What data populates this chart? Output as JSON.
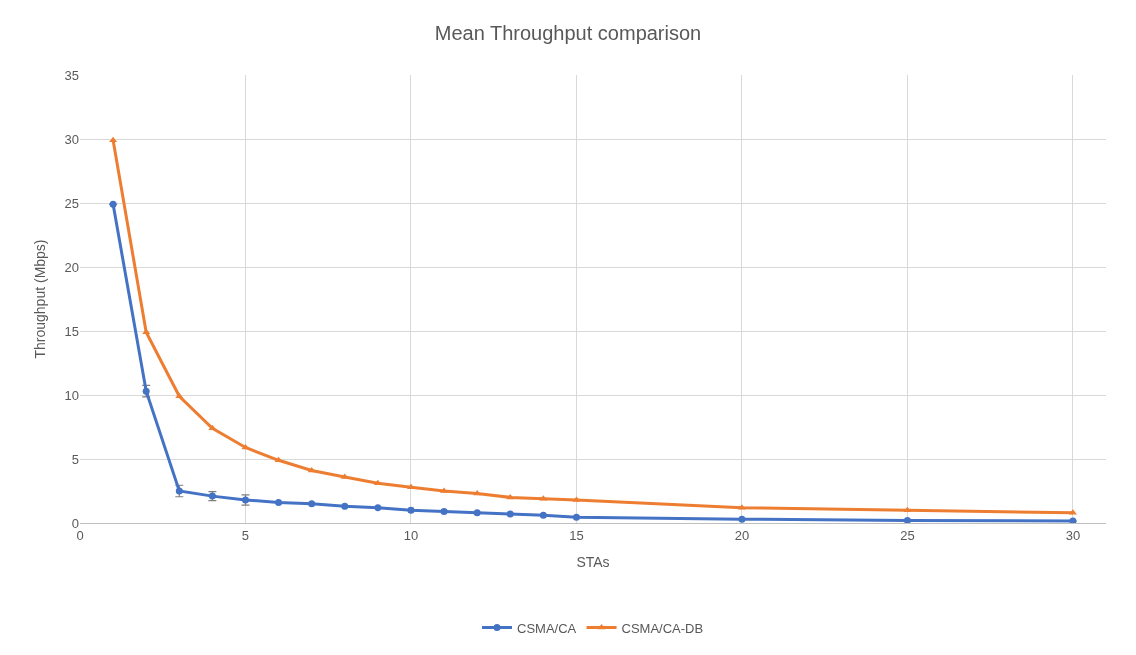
{
  "chart_data": {
    "type": "line",
    "title": "Mean Throughput comparison",
    "xlabel": "STAs",
    "ylabel": "Throughput (Mbps)",
    "x": [
      1,
      2,
      3,
      4,
      5,
      6,
      7,
      8,
      9,
      10,
      11,
      12,
      13,
      14,
      15,
      20,
      25,
      30
    ],
    "series": [
      {
        "name": "CSMA/CA",
        "color": "#4472c4",
        "marker": "circle",
        "values": [
          24.9,
          10.3,
          2.5,
          2.1,
          1.8,
          1.6,
          1.5,
          1.3,
          1.2,
          1.0,
          0.9,
          0.8,
          0.7,
          0.6,
          0.45,
          0.3,
          0.2,
          0.15
        ],
        "errors": [
          null,
          0.45,
          0.45,
          0.35,
          0.4,
          null,
          null,
          null,
          null,
          null,
          null,
          null,
          null,
          null,
          null,
          null,
          null,
          null
        ]
      },
      {
        "name": "CSMA/CA-DB",
        "color": "#ed7d31",
        "marker": "triangle",
        "values": [
          29.9,
          14.9,
          9.9,
          7.4,
          5.9,
          4.9,
          4.1,
          3.6,
          3.1,
          2.8,
          2.5,
          2.3,
          2.0,
          1.9,
          1.8,
          1.2,
          1.0,
          0.8
        ]
      }
    ],
    "xlim": [
      0,
      31
    ],
    "xticks": [
      0,
      5,
      10,
      15,
      20,
      25,
      30
    ],
    "ylim": [
      0,
      35
    ],
    "yticks": [
      0,
      5,
      10,
      15,
      20,
      25,
      30,
      35
    ],
    "grid": true,
    "legend": "bottom",
    "line_style": "solid"
  }
}
